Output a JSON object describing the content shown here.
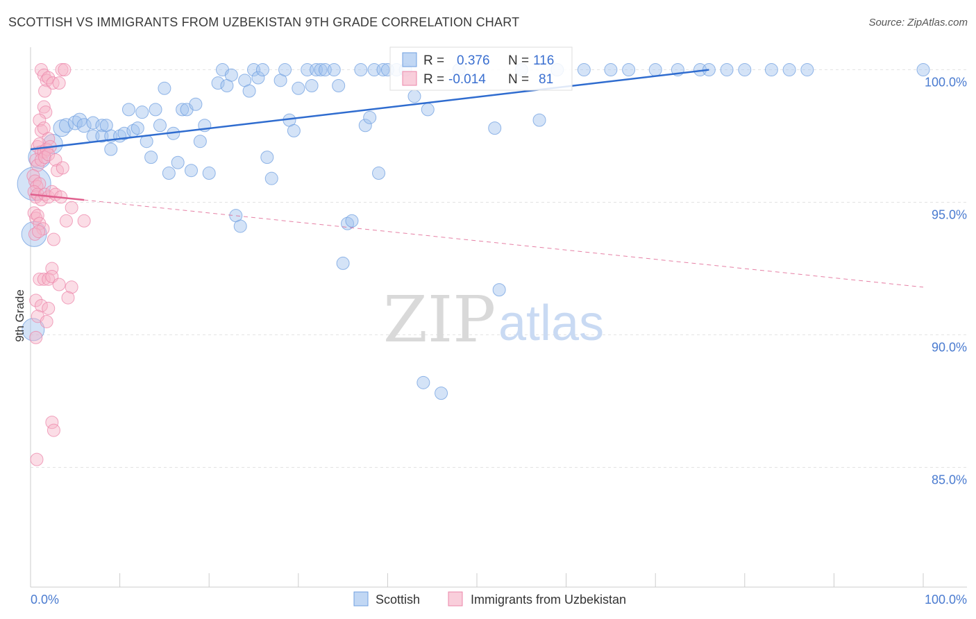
{
  "header": {
    "title": "SCOTTISH VS IMMIGRANTS FROM UZBEKISTAN 9TH GRADE CORRELATION CHART",
    "source": "Source: ZipAtlas.com"
  },
  "watermark": {
    "part1": "ZIP",
    "part2": "atlas"
  },
  "colors": {
    "blue": "#9fc1ee",
    "blue_stroke": "#6f9fe0",
    "blue_line": "#2f6ccf",
    "pink": "#f6b3c8",
    "pink_stroke": "#ec86a9",
    "pink_line": "#e0608e",
    "grid": "#e3e3e3",
    "tick_label": "#4a7bd0"
  },
  "chart_data": {
    "type": "scatter",
    "title": "SCOTTISH VS IMMIGRANTS FROM UZBEKISTAN 9TH GRADE CORRELATION CHART",
    "xlabel": "",
    "ylabel": "9th Grade",
    "xlim": [
      0,
      100
    ],
    "ylim": [
      80.8,
      100.8
    ],
    "x_tick_labels": {
      "min": "0.0%",
      "max": "100.0%"
    },
    "y_ticks": [
      {
        "value": 100,
        "label": "100.0%"
      },
      {
        "value": 95,
        "label": "95.0%"
      },
      {
        "value": 90,
        "label": "90.0%"
      },
      {
        "value": 85,
        "label": "85.0%"
      }
    ],
    "grid": true,
    "legend_position": "bottom",
    "stats": [
      {
        "series": "Scottish",
        "r_label": "R = ",
        "r": "0.376",
        "n_label": "N = ",
        "n": "116"
      },
      {
        "series": "Immigrants from Uzbekistan",
        "r_label": "R = ",
        "r": "-0.014",
        "n_label": "N = ",
        "n": "81"
      }
    ],
    "series": [
      {
        "name": "Scottish",
        "color": "#9fc1ee",
        "trend": {
          "x": [
            0,
            76
          ],
          "y": [
            97.0,
            100.0
          ],
          "style": "solid"
        },
        "points": [
          {
            "x": 0.4,
            "y": 95.7,
            "s": 24
          },
          {
            "x": 0.4,
            "y": 93.8,
            "s": 18
          },
          {
            "x": 0.3,
            "y": 90.2,
            "s": 16
          },
          {
            "x": 1.0,
            "y": 96.7,
            "s": 16
          },
          {
            "x": 2.5,
            "y": 97.2,
            "s": 14
          },
          {
            "x": 3.5,
            "y": 97.8,
            "s": 12
          },
          {
            "x": 4.0,
            "y": 97.9,
            "s": 10
          },
          {
            "x": 5.0,
            "y": 98.0,
            "s": 10
          },
          {
            "x": 5.5,
            "y": 98.1,
            "s": 10
          },
          {
            "x": 6.0,
            "y": 97.9,
            "s": 10
          },
          {
            "x": 7.0,
            "y": 98.0,
            "s": 9
          },
          {
            "x": 7.0,
            "y": 97.5,
            "s": 9
          },
          {
            "x": 8.0,
            "y": 97.9,
            "s": 9
          },
          {
            "x": 8.0,
            "y": 97.5,
            "s": 9
          },
          {
            "x": 8.5,
            "y": 97.9,
            "s": 9
          },
          {
            "x": 9.0,
            "y": 97.5,
            "s": 9
          },
          {
            "x": 9.0,
            "y": 97.0,
            "s": 9
          },
          {
            "x": 10.0,
            "y": 97.5,
            "s": 9
          },
          {
            "x": 10.5,
            "y": 97.6,
            "s": 9
          },
          {
            "x": 11.0,
            "y": 98.5,
            "s": 9
          },
          {
            "x": 11.5,
            "y": 97.7,
            "s": 9
          },
          {
            "x": 12.0,
            "y": 97.8,
            "s": 9
          },
          {
            "x": 12.5,
            "y": 98.4,
            "s": 9
          },
          {
            "x": 13.0,
            "y": 97.3,
            "s": 9
          },
          {
            "x": 13.5,
            "y": 96.7,
            "s": 9
          },
          {
            "x": 14.0,
            "y": 98.5,
            "s": 9
          },
          {
            "x": 14.5,
            "y": 97.9,
            "s": 9
          },
          {
            "x": 15.0,
            "y": 99.3,
            "s": 9
          },
          {
            "x": 15.5,
            "y": 96.1,
            "s": 9
          },
          {
            "x": 16.0,
            "y": 97.6,
            "s": 9
          },
          {
            "x": 16.5,
            "y": 96.5,
            "s": 9
          },
          {
            "x": 17.0,
            "y": 98.5,
            "s": 9
          },
          {
            "x": 17.5,
            "y": 98.5,
            "s": 9
          },
          {
            "x": 18.0,
            "y": 96.2,
            "s": 9
          },
          {
            "x": 18.5,
            "y": 98.7,
            "s": 9
          },
          {
            "x": 19.0,
            "y": 97.3,
            "s": 9
          },
          {
            "x": 19.5,
            "y": 97.9,
            "s": 9
          },
          {
            "x": 20.0,
            "y": 96.1,
            "s": 9
          },
          {
            "x": 21.0,
            "y": 99.5,
            "s": 9
          },
          {
            "x": 21.5,
            "y": 100.0,
            "s": 9
          },
          {
            "x": 22.0,
            "y": 99.4,
            "s": 9
          },
          {
            "x": 22.5,
            "y": 99.8,
            "s": 9
          },
          {
            "x": 23.0,
            "y": 94.5,
            "s": 9
          },
          {
            "x": 23.5,
            "y": 94.1,
            "s": 9
          },
          {
            "x": 24.0,
            "y": 99.6,
            "s": 9
          },
          {
            "x": 24.5,
            "y": 99.2,
            "s": 9
          },
          {
            "x": 25.0,
            "y": 100.0,
            "s": 9
          },
          {
            "x": 25.5,
            "y": 99.7,
            "s": 9
          },
          {
            "x": 26.0,
            "y": 100.0,
            "s": 9
          },
          {
            "x": 26.5,
            "y": 96.7,
            "s": 9
          },
          {
            "x": 27.0,
            "y": 95.9,
            "s": 9
          },
          {
            "x": 28.0,
            "y": 99.6,
            "s": 9
          },
          {
            "x": 28.5,
            "y": 100.0,
            "s": 9
          },
          {
            "x": 29.0,
            "y": 98.1,
            "s": 9
          },
          {
            "x": 29.5,
            "y": 97.7,
            "s": 9
          },
          {
            "x": 30.0,
            "y": 99.3,
            "s": 9
          },
          {
            "x": 31.0,
            "y": 100.0,
            "s": 9
          },
          {
            "x": 31.5,
            "y": 99.4,
            "s": 9
          },
          {
            "x": 32.0,
            "y": 100.0,
            "s": 9
          },
          {
            "x": 32.5,
            "y": 100.0,
            "s": 9
          },
          {
            "x": 33.0,
            "y": 100.0,
            "s": 9
          },
          {
            "x": 34.0,
            "y": 100.0,
            "s": 9
          },
          {
            "x": 34.5,
            "y": 99.4,
            "s": 9
          },
          {
            "x": 35.0,
            "y": 92.7,
            "s": 9
          },
          {
            "x": 35.5,
            "y": 94.2,
            "s": 9
          },
          {
            "x": 36.0,
            "y": 94.3,
            "s": 9
          },
          {
            "x": 37.0,
            "y": 100.0,
            "s": 9
          },
          {
            "x": 37.5,
            "y": 97.9,
            "s": 9
          },
          {
            "x": 38.0,
            "y": 98.2,
            "s": 9
          },
          {
            "x": 38.5,
            "y": 100.0,
            "s": 9
          },
          {
            "x": 39.0,
            "y": 96.1,
            "s": 9
          },
          {
            "x": 39.5,
            "y": 100.0,
            "s": 9
          },
          {
            "x": 40.0,
            "y": 100.0,
            "s": 9
          },
          {
            "x": 41.0,
            "y": 100.0,
            "s": 9
          },
          {
            "x": 42.0,
            "y": 100.0,
            "s": 9
          },
          {
            "x": 43.0,
            "y": 99.0,
            "s": 9
          },
          {
            "x": 44.0,
            "y": 88.2,
            "s": 9
          },
          {
            "x": 44.5,
            "y": 98.5,
            "s": 9
          },
          {
            "x": 46.0,
            "y": 87.8,
            "s": 9
          },
          {
            "x": 48.0,
            "y": 100.0,
            "s": 9
          },
          {
            "x": 52.0,
            "y": 97.8,
            "s": 9
          },
          {
            "x": 52.5,
            "y": 91.7,
            "s": 9
          },
          {
            "x": 55.0,
            "y": 100.0,
            "s": 9
          },
          {
            "x": 57.0,
            "y": 98.1,
            "s": 9
          },
          {
            "x": 59.0,
            "y": 100.0,
            "s": 9
          },
          {
            "x": 62.0,
            "y": 100.0,
            "s": 9
          },
          {
            "x": 65.0,
            "y": 100.0,
            "s": 9
          },
          {
            "x": 67.0,
            "y": 100.0,
            "s": 9
          },
          {
            "x": 70.0,
            "y": 100.0,
            "s": 9
          },
          {
            "x": 72.5,
            "y": 100.0,
            "s": 9
          },
          {
            "x": 75.0,
            "y": 100.0,
            "s": 9
          },
          {
            "x": 76.0,
            "y": 100.0,
            "s": 9
          },
          {
            "x": 78.0,
            "y": 100.0,
            "s": 9
          },
          {
            "x": 80.0,
            "y": 100.0,
            "s": 9
          },
          {
            "x": 83.0,
            "y": 100.0,
            "s": 9
          },
          {
            "x": 85.0,
            "y": 100.0,
            "s": 9
          },
          {
            "x": 87.0,
            "y": 100.0,
            "s": 9
          },
          {
            "x": 100.0,
            "y": 100.0,
            "s": 9
          }
        ]
      },
      {
        "name": "Immigrants from Uzbekistan",
        "color": "#f6b3c8",
        "trend": {
          "x": [
            0,
            100
          ],
          "y": [
            95.3,
            91.8
          ],
          "solid_until_x": 6
        },
        "points": [
          {
            "x": 1.2,
            "y": 100.0,
            "s": 9
          },
          {
            "x": 1.5,
            "y": 99.8,
            "s": 9
          },
          {
            "x": 1.8,
            "y": 99.6,
            "s": 9
          },
          {
            "x": 2.0,
            "y": 99.7,
            "s": 9
          },
          {
            "x": 2.5,
            "y": 99.5,
            "s": 9
          },
          {
            "x": 3.5,
            "y": 100.0,
            "s": 9
          },
          {
            "x": 3.8,
            "y": 100.0,
            "s": 9
          },
          {
            "x": 3.2,
            "y": 99.5,
            "s": 9
          },
          {
            "x": 1.6,
            "y": 99.2,
            "s": 9
          },
          {
            "x": 1.5,
            "y": 98.6,
            "s": 9
          },
          {
            "x": 1.7,
            "y": 98.4,
            "s": 9
          },
          {
            "x": 1.0,
            "y": 98.1,
            "s": 9
          },
          {
            "x": 1.2,
            "y": 97.7,
            "s": 9
          },
          {
            "x": 1.5,
            "y": 97.8,
            "s": 9
          },
          {
            "x": 2.0,
            "y": 97.4,
            "s": 9
          },
          {
            "x": 0.8,
            "y": 97.1,
            "s": 9
          },
          {
            "x": 1.0,
            "y": 97.2,
            "s": 9
          },
          {
            "x": 1.2,
            "y": 96.9,
            "s": 9
          },
          {
            "x": 1.5,
            "y": 96.9,
            "s": 9
          },
          {
            "x": 1.8,
            "y": 97.0,
            "s": 9
          },
          {
            "x": 2.2,
            "y": 97.1,
            "s": 9
          },
          {
            "x": 0.6,
            "y": 96.6,
            "s": 9
          },
          {
            "x": 0.8,
            "y": 96.4,
            "s": 9
          },
          {
            "x": 1.2,
            "y": 96.6,
            "s": 9
          },
          {
            "x": 1.6,
            "y": 96.7,
            "s": 9
          },
          {
            "x": 2.0,
            "y": 96.8,
            "s": 9
          },
          {
            "x": 2.8,
            "y": 96.6,
            "s": 9
          },
          {
            "x": 3.0,
            "y": 96.2,
            "s": 9
          },
          {
            "x": 3.6,
            "y": 96.3,
            "s": 9
          },
          {
            "x": 0.3,
            "y": 96.0,
            "s": 9
          },
          {
            "x": 0.5,
            "y": 95.8,
            "s": 9
          },
          {
            "x": 0.7,
            "y": 95.6,
            "s": 9
          },
          {
            "x": 1.0,
            "y": 95.7,
            "s": 9
          },
          {
            "x": 0.4,
            "y": 95.4,
            "s": 9
          },
          {
            "x": 0.6,
            "y": 95.2,
            "s": 9
          },
          {
            "x": 0.8,
            "y": 95.3,
            "s": 9
          },
          {
            "x": 1.2,
            "y": 95.1,
            "s": 9
          },
          {
            "x": 1.6,
            "y": 95.3,
            "s": 9
          },
          {
            "x": 2.0,
            "y": 95.2,
            "s": 9
          },
          {
            "x": 2.4,
            "y": 95.4,
            "s": 9
          },
          {
            "x": 2.8,
            "y": 95.3,
            "s": 9
          },
          {
            "x": 3.4,
            "y": 95.2,
            "s": 9
          },
          {
            "x": 0.4,
            "y": 94.6,
            "s": 9
          },
          {
            "x": 0.6,
            "y": 94.4,
            "s": 9
          },
          {
            "x": 0.8,
            "y": 94.5,
            "s": 9
          },
          {
            "x": 1.0,
            "y": 94.2,
            "s": 9
          },
          {
            "x": 1.4,
            "y": 94.0,
            "s": 9
          },
          {
            "x": 0.5,
            "y": 93.8,
            "s": 9
          },
          {
            "x": 0.9,
            "y": 93.9,
            "s": 9
          },
          {
            "x": 4.0,
            "y": 94.3,
            "s": 9
          },
          {
            "x": 4.6,
            "y": 94.8,
            "s": 9
          },
          {
            "x": 6.0,
            "y": 94.3,
            "s": 9
          },
          {
            "x": 2.6,
            "y": 93.6,
            "s": 9
          },
          {
            "x": 2.4,
            "y": 92.5,
            "s": 9
          },
          {
            "x": 1.0,
            "y": 92.1,
            "s": 9
          },
          {
            "x": 1.5,
            "y": 92.1,
            "s": 9
          },
          {
            "x": 2.0,
            "y": 92.1,
            "s": 9
          },
          {
            "x": 2.4,
            "y": 92.2,
            "s": 9
          },
          {
            "x": 3.2,
            "y": 91.9,
            "s": 9
          },
          {
            "x": 4.6,
            "y": 91.8,
            "s": 9
          },
          {
            "x": 4.2,
            "y": 91.4,
            "s": 9
          },
          {
            "x": 0.6,
            "y": 91.3,
            "s": 9
          },
          {
            "x": 1.2,
            "y": 91.1,
            "s": 9
          },
          {
            "x": 2.0,
            "y": 91.0,
            "s": 9
          },
          {
            "x": 0.8,
            "y": 90.7,
            "s": 9
          },
          {
            "x": 1.8,
            "y": 90.5,
            "s": 9
          },
          {
            "x": 0.6,
            "y": 89.9,
            "s": 9
          },
          {
            "x": 2.4,
            "y": 86.7,
            "s": 9
          },
          {
            "x": 2.6,
            "y": 86.4,
            "s": 9
          },
          {
            "x": 0.7,
            "y": 85.3,
            "s": 9
          }
        ]
      }
    ]
  }
}
